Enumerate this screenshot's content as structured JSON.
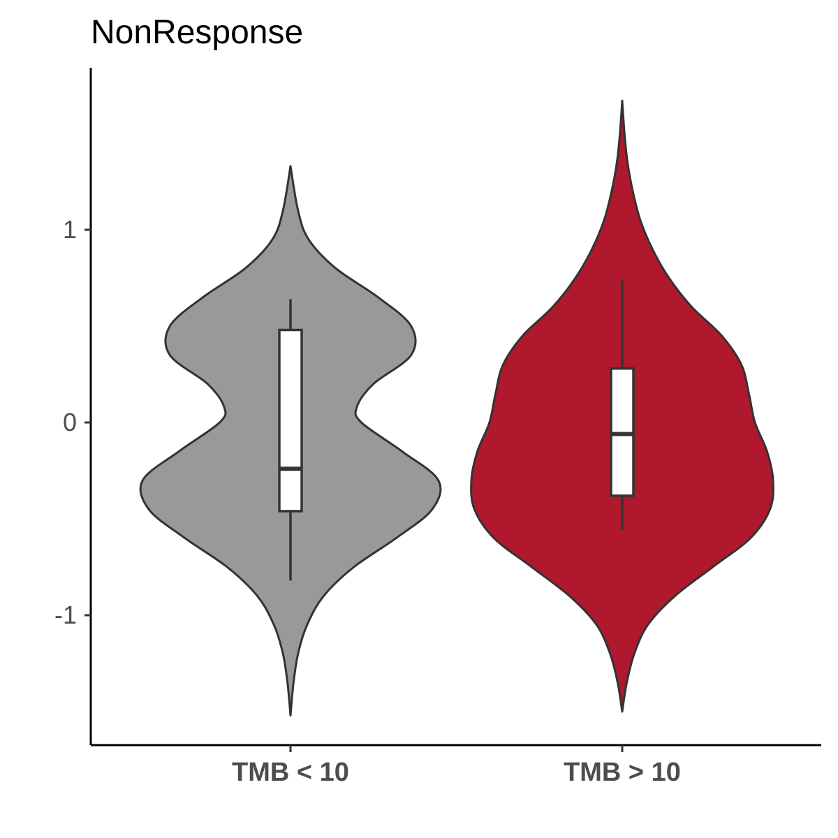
{
  "chart_data": {
    "type": "violin",
    "title": "NonResponse",
    "xlabel": "",
    "ylabel": "",
    "ylim": [
      -1.55,
      1.7
    ],
    "yticks": [
      -1,
      0,
      1
    ],
    "ytick_labels": [
      "-1",
      "0",
      "1"
    ],
    "grid": false,
    "legend": "none",
    "categories": [
      "TMB < 10",
      "TMB > 10"
    ],
    "groups": [
      {
        "category": "TMB < 10",
        "fill": "#999999",
        "violin_range": [
          -1.52,
          1.33
        ],
        "density_profile": [
          {
            "y": -1.52,
            "w": 0.0
          },
          {
            "y": -1.35,
            "w": 0.02
          },
          {
            "y": -1.2,
            "w": 0.05
          },
          {
            "y": -1.05,
            "w": 0.11
          },
          {
            "y": -0.9,
            "w": 0.22
          },
          {
            "y": -0.75,
            "w": 0.42
          },
          {
            "y": -0.6,
            "w": 0.7
          },
          {
            "y": -0.45,
            "w": 0.94
          },
          {
            "y": -0.3,
            "w": 0.98
          },
          {
            "y": -0.15,
            "w": 0.74
          },
          {
            "y": 0.0,
            "w": 0.47
          },
          {
            "y": 0.08,
            "w": 0.44
          },
          {
            "y": 0.2,
            "w": 0.55
          },
          {
            "y": 0.35,
            "w": 0.8
          },
          {
            "y": 0.5,
            "w": 0.8
          },
          {
            "y": 0.65,
            "w": 0.58
          },
          {
            "y": 0.8,
            "w": 0.3
          },
          {
            "y": 0.95,
            "w": 0.12
          },
          {
            "y": 1.1,
            "w": 0.05
          },
          {
            "y": 1.33,
            "w": 0.0
          }
        ],
        "box": {
          "whisker_low": -0.82,
          "q1": -0.46,
          "median": -0.24,
          "q3": 0.48,
          "whisker_high": 0.64
        }
      },
      {
        "category": "TMB > 10",
        "fill": "#B0182D",
        "violin_range": [
          -1.5,
          1.67
        ],
        "density_profile": [
          {
            "y": -1.5,
            "w": 0.0
          },
          {
            "y": -1.35,
            "w": 0.03
          },
          {
            "y": -1.2,
            "w": 0.08
          },
          {
            "y": -1.05,
            "w": 0.17
          },
          {
            "y": -0.9,
            "w": 0.35
          },
          {
            "y": -0.75,
            "w": 0.6
          },
          {
            "y": -0.6,
            "w": 0.85
          },
          {
            "y": -0.45,
            "w": 0.98
          },
          {
            "y": -0.3,
            "w": 1.0
          },
          {
            "y": -0.15,
            "w": 0.96
          },
          {
            "y": 0.0,
            "w": 0.88
          },
          {
            "y": 0.15,
            "w": 0.84
          },
          {
            "y": 0.3,
            "w": 0.79
          },
          {
            "y": 0.45,
            "w": 0.66
          },
          {
            "y": 0.6,
            "w": 0.46
          },
          {
            "y": 0.75,
            "w": 0.31
          },
          {
            "y": 0.9,
            "w": 0.2
          },
          {
            "y": 1.05,
            "w": 0.12
          },
          {
            "y": 1.2,
            "w": 0.07
          },
          {
            "y": 1.35,
            "w": 0.035
          },
          {
            "y": 1.5,
            "w": 0.015
          },
          {
            "y": 1.67,
            "w": 0.0
          }
        ],
        "box": {
          "whisker_low": -0.56,
          "q1": -0.38,
          "median": -0.06,
          "q3": 0.28,
          "whisker_high": 0.74
        }
      }
    ]
  }
}
